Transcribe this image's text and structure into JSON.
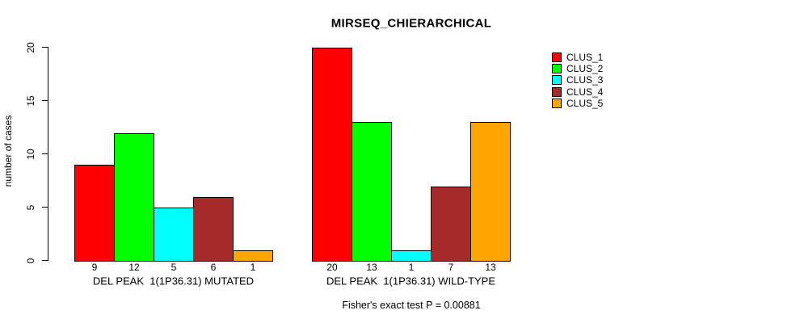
{
  "chart_data": {
    "type": "bar",
    "title": "MIRSEQ_CHIERARCHICAL",
    "ylabel": "number of cases",
    "xlabel": "",
    "ylim": [
      0,
      20
    ],
    "y_ticks": [
      0,
      5,
      10,
      15,
      20
    ],
    "grid": false,
    "legend_position": "right-outside",
    "categories": [
      "DEL PEAK  1(1P36.31) MUTATED",
      "DEL PEAK  1(1P36.31) WILD-TYPE"
    ],
    "series": [
      {
        "name": "CLUS_1",
        "color": "#ff0000",
        "values": [
          9,
          20
        ]
      },
      {
        "name": "CLUS_2",
        "color": "#00ff00",
        "values": [
          12,
          13
        ]
      },
      {
        "name": "CLUS_3",
        "color": "#00ffff",
        "values": [
          5,
          1
        ]
      },
      {
        "name": "CLUS_4",
        "color": "#a52a2a",
        "values": [
          6,
          7
        ]
      },
      {
        "name": "CLUS_5",
        "color": "#ffa500",
        "values": [
          1,
          13
        ]
      }
    ],
    "bar_value_labels": [
      [
        "9",
        "12",
        "5",
        "6",
        "1"
      ],
      [
        "20",
        "13",
        "1",
        "7",
        "13"
      ]
    ],
    "annotation": "Fisher's exact test P = 0.00881",
    "axis_color": "#000000",
    "bar_border_color": "#000000",
    "background_color": "#ffffff"
  }
}
